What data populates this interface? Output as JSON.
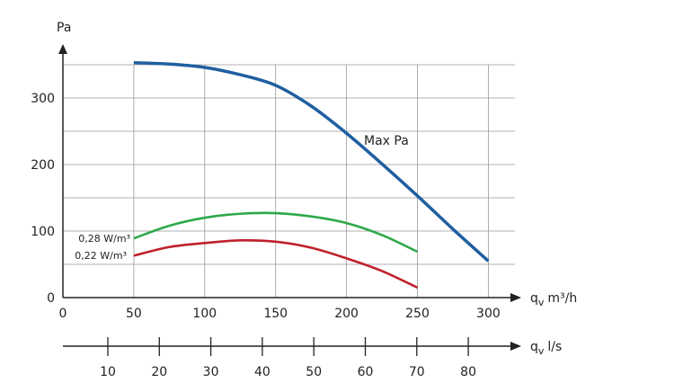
{
  "chart_data": {
    "type": "line",
    "ylabel": "Pa",
    "xlabel": "q_v m³/h",
    "xlabel_main": "q",
    "xlabel_sub": "v",
    "xlabel_unit": "m³/h",
    "x2label_main": "q",
    "x2label_sub": "v",
    "x2label_unit": "l/s",
    "xlim": [
      0,
      320
    ],
    "ylim": [
      0,
      350
    ],
    "grid": true,
    "x_ticks": [
      0,
      50,
      100,
      150,
      200,
      250,
      300
    ],
    "y_ticks": [
      0,
      100,
      200,
      300
    ],
    "x2_ticks": [
      10,
      20,
      30,
      40,
      50,
      60,
      70,
      80
    ],
    "series": [
      {
        "name": "Max Pa",
        "color": "#1f5fa0",
        "x": [
          50,
          75,
          100,
          125,
          150,
          175,
          200,
          225,
          250,
          275,
          300
        ],
        "y": [
          353,
          351,
          346,
          335,
          319,
          288,
          247,
          201,
          153,
          103,
          55
        ]
      },
      {
        "name": "0,28 W/m³",
        "color": "#2ea84a",
        "x": [
          50,
          75,
          100,
          125,
          150,
          175,
          200,
          225,
          250
        ],
        "y": [
          89,
          108,
          120,
          126,
          127,
          122,
          112,
          94,
          69
        ]
      },
      {
        "name": "0,22 W/m³",
        "color": "#c0202a",
        "x": [
          50,
          75,
          100,
          125,
          150,
          175,
          200,
          225,
          250
        ],
        "y": [
          63,
          76,
          82,
          86,
          84,
          75,
          59,
          40,
          15
        ]
      }
    ]
  }
}
